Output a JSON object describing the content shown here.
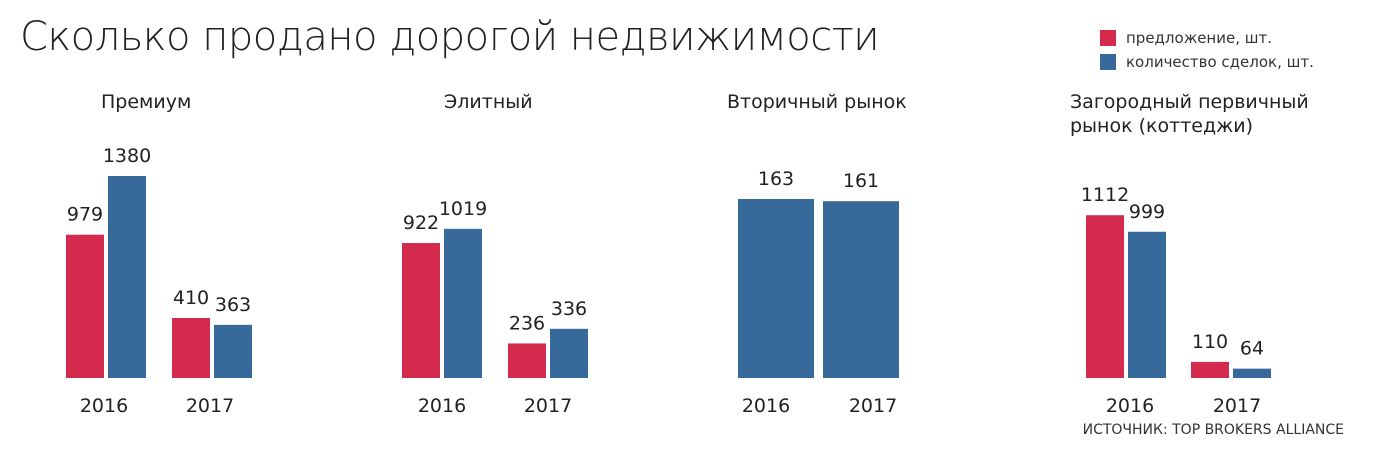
{
  "title": "Сколько продано дорогой недвижимости",
  "legend": [
    {
      "label": "предложение, шт.",
      "color": "#d42a4e"
    },
    {
      "label": "количество сделок, шт.",
      "color": "#376a9b"
    }
  ],
  "source": "ИСТОЧНИК: TOP BROKERS ALLIANCE",
  "chart_data": [
    {
      "type": "bar",
      "title": "Премиум",
      "categories": [
        "2016",
        "2017"
      ],
      "series": [
        {
          "name": "предложение, шт.",
          "values": [
            979,
            410
          ]
        },
        {
          "name": "количество сделок, шт.",
          "values": [
            1380,
            363
          ]
        }
      ]
    },
    {
      "type": "bar",
      "title": "Элитный",
      "categories": [
        "2016",
        "2017"
      ],
      "series": [
        {
          "name": "предложение, шт.",
          "values": [
            922,
            236
          ]
        },
        {
          "name": "количество сделок, шт.",
          "values": [
            1019,
            336
          ]
        }
      ]
    },
    {
      "type": "bar",
      "title": "Вторичный рынок",
      "categories": [
        "2016",
        "2017"
      ],
      "series": [
        {
          "name": "количество сделок, шт.",
          "values": [
            163,
            161
          ]
        }
      ]
    },
    {
      "type": "bar",
      "title": "Загородный первичный рынок (коттеджи)",
      "categories": [
        "2016",
        "2017"
      ],
      "series": [
        {
          "name": "предложение, шт.",
          "values": [
            1112,
            110
          ]
        },
        {
          "name": "количество сделок, шт.",
          "values": [
            999,
            64
          ]
        }
      ]
    }
  ]
}
